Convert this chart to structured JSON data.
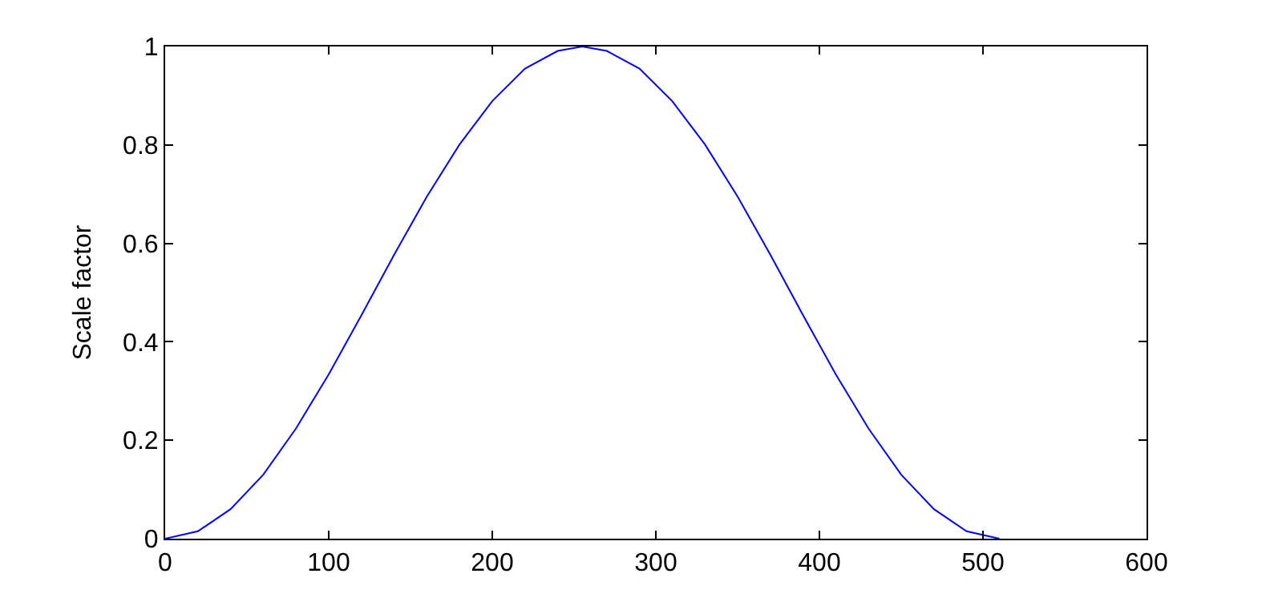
{
  "chart_data": {
    "type": "line",
    "ylabel": "Scale factor",
    "x": [
      0,
      20,
      40,
      60,
      80,
      100,
      120,
      140,
      160,
      180,
      200,
      220,
      240,
      255,
      270,
      290,
      310,
      330,
      350,
      370,
      390,
      410,
      430,
      450,
      470,
      490,
      510
    ],
    "series": [
      {
        "color": "#0000ff",
        "values": [
          0,
          0.015,
          0.06,
          0.13,
          0.224,
          0.334,
          0.454,
          0.577,
          0.695,
          0.801,
          0.889,
          0.955,
          0.991,
          1,
          0.991,
          0.955,
          0.889,
          0.801,
          0.695,
          0.577,
          0.454,
          0.334,
          0.224,
          0.13,
          0.06,
          0.015,
          0
        ]
      }
    ],
    "xlim": [
      0,
      600
    ],
    "xticks": [
      0,
      100,
      200,
      300,
      400,
      500,
      600
    ],
    "ylim": [
      0,
      1
    ],
    "yticks": [
      0,
      0.2,
      0.4,
      0.6,
      0.8,
      1
    ],
    "legend": false,
    "marker": "none",
    "line_style": "solid"
  }
}
